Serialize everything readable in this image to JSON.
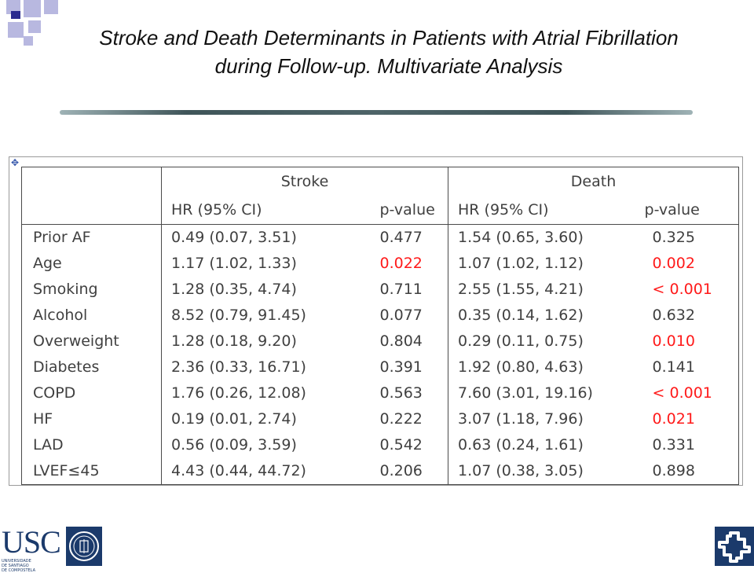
{
  "slide": {
    "title": "Stroke and Death Determinants in Patients with Atrial Fibrillation during Follow-up. Multivariate Analysis"
  },
  "table": {
    "groups": [
      "Stroke",
      "Death"
    ],
    "subheaders": {
      "stroke_hr": "HR  (95% CI)",
      "stroke_p": "p-value",
      "death_hr": "HR  (95% CI)",
      "death_p": "p-value"
    },
    "rows": [
      {
        "label": "Prior AF",
        "stroke_hr": "0.49 (0.07, 3.51)",
        "stroke_p": "0.477",
        "stroke_sig": false,
        "death_hr": "1.54 (0.65, 3.60)",
        "death_p": "0.325",
        "death_sig": false
      },
      {
        "label": "Age",
        "stroke_hr": "1.17 (1.02, 1.33)",
        "stroke_p": "0.022",
        "stroke_sig": true,
        "death_hr": "1.07 (1.02, 1.12)",
        "death_p": "0.002",
        "death_sig": true
      },
      {
        "label": "Smoking",
        "stroke_hr": "1.28 (0.35, 4.74)",
        "stroke_p": "0.711",
        "stroke_sig": false,
        "death_hr": "2.55 (1.55, 4.21)",
        "death_p": "< 0.001",
        "death_sig": true
      },
      {
        "label": "Alcohol",
        "stroke_hr": "8.52 (0.79, 91.45)",
        "stroke_p": "0.077",
        "stroke_sig": false,
        "death_hr": "0.35 (0.14, 1.62)",
        "death_p": "0.632",
        "death_sig": false
      },
      {
        "label": "Overweight",
        "stroke_hr": "1.28 (0.18, 9.20)",
        "stroke_p": "0.804",
        "stroke_sig": false,
        "death_hr": "0.29 (0.11, 0.75)",
        "death_p": "0.010",
        "death_sig": true
      },
      {
        "label": "Diabetes",
        "stroke_hr": "2.36 (0.33, 16.71)",
        "stroke_p": "0.391",
        "stroke_sig": false,
        "death_hr": "1.92 (0.80, 4.63)",
        "death_p": "0.141",
        "death_sig": false
      },
      {
        "label": "COPD",
        "stroke_hr": "1.76 (0.26, 12.08)",
        "stroke_p": "0.563",
        "stroke_sig": false,
        "death_hr": "7.60 (3.01, 19.16)",
        "death_p": "< 0.001",
        "death_sig": true
      },
      {
        "label": "HF",
        "stroke_hr": "0.19 (0.01, 2.74)",
        "stroke_p": "0.222",
        "stroke_sig": false,
        "death_hr": "3.07 (1.18, 7.96)",
        "death_p": "0.021",
        "death_sig": true
      },
      {
        "label": "LAD",
        "stroke_hr": "0.56 (0.09, 3.59)",
        "stroke_p": "0.542",
        "stroke_sig": false,
        "death_hr": "0.63 (0.24, 1.61)",
        "death_p": "0.331",
        "death_sig": false
      },
      {
        "label": "LVEF≤45",
        "stroke_hr": "4.43 (0.44, 44.72)",
        "stroke_p": "0.206",
        "stroke_sig": false,
        "death_hr": "1.07 (0.38, 3.05)",
        "death_p": "0.898",
        "death_sig": false
      }
    ]
  },
  "colors": {
    "significant": "#ff1a1a",
    "text": "#404040",
    "logo_blue": "#1b3a6b",
    "deco_blue": "#2b2b8f",
    "deco_lavender": "#b8b8e0"
  },
  "logos": {
    "left_letters": "USC",
    "left_subtitle_1": "UNIVERSIDADE",
    "left_subtitle_2": "DE SANTIAGO",
    "left_subtitle_3": "DE COMPOSTELA",
    "left_seal": "university-seal-icon",
    "right_mark": "cross-knot-icon"
  },
  "icons": {
    "table_handle": "move-handle-icon"
  }
}
